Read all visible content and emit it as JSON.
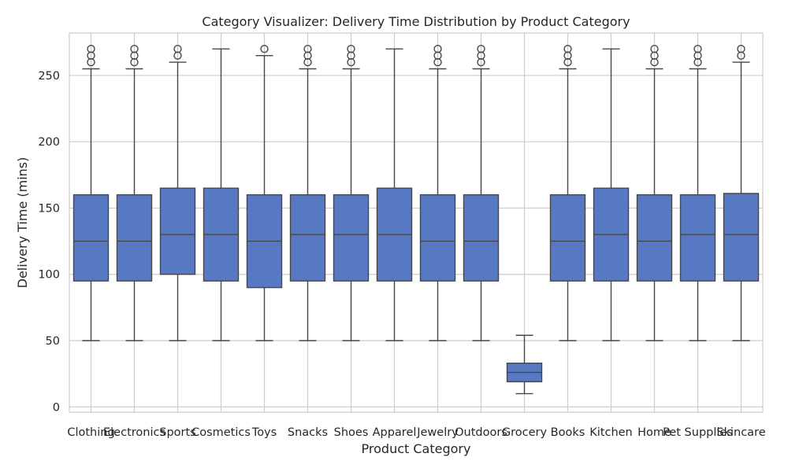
{
  "chart_data": {
    "type": "box",
    "title": "Category Visualizer: Delivery Time Distribution by Product Category",
    "xlabel": "Product Category",
    "ylabel": "Delivery Time (mins)",
    "ylim": [
      -4,
      282
    ],
    "yticks": [
      0,
      50,
      100,
      150,
      200,
      250
    ],
    "grid": true,
    "box_color": "#5778c3",
    "line_color": "#474747",
    "categories": [
      "Clothing",
      "Electronics",
      "Sports",
      "Cosmetics",
      "Toys",
      "Snacks",
      "Shoes",
      "Apparel",
      "Jewelry",
      "Outdoors",
      "Grocery",
      "Books",
      "Kitchen",
      "Home",
      "Pet Supplies",
      "Skincare"
    ],
    "boxes": [
      {
        "whisker_low": 50,
        "q1": 95,
        "median": 125,
        "q3": 160,
        "whisker_high": 255,
        "outliers": [
          260,
          265,
          270
        ]
      },
      {
        "whisker_low": 50,
        "q1": 95,
        "median": 125,
        "q3": 160,
        "whisker_high": 255,
        "outliers": [
          260,
          265,
          270
        ]
      },
      {
        "whisker_low": 50,
        "q1": 100,
        "median": 130,
        "q3": 165,
        "whisker_high": 260,
        "outliers": [
          265,
          270
        ]
      },
      {
        "whisker_low": 50,
        "q1": 95,
        "median": 130,
        "q3": 165,
        "whisker_high": 270,
        "outliers": []
      },
      {
        "whisker_low": 50,
        "q1": 90,
        "median": 125,
        "q3": 160,
        "whisker_high": 265,
        "outliers": [
          270
        ]
      },
      {
        "whisker_low": 50,
        "q1": 95,
        "median": 130,
        "q3": 160,
        "whisker_high": 255,
        "outliers": [
          260,
          265,
          270
        ]
      },
      {
        "whisker_low": 50,
        "q1": 95,
        "median": 130,
        "q3": 160,
        "whisker_high": 255,
        "outliers": [
          260,
          265,
          270
        ]
      },
      {
        "whisker_low": 50,
        "q1": 95,
        "median": 130,
        "q3": 165,
        "whisker_high": 270,
        "outliers": []
      },
      {
        "whisker_low": 50,
        "q1": 95,
        "median": 125,
        "q3": 160,
        "whisker_high": 255,
        "outliers": [
          260,
          265,
          270
        ]
      },
      {
        "whisker_low": 50,
        "q1": 95,
        "median": 125,
        "q3": 160,
        "whisker_high": 255,
        "outliers": [
          260,
          265,
          270
        ]
      },
      {
        "whisker_low": 10,
        "q1": 19,
        "median": 26,
        "q3": 33,
        "whisker_high": 54,
        "outliers": []
      },
      {
        "whisker_low": 50,
        "q1": 95,
        "median": 125,
        "q3": 160,
        "whisker_high": 255,
        "outliers": [
          260,
          265,
          270
        ]
      },
      {
        "whisker_low": 50,
        "q1": 95,
        "median": 130,
        "q3": 165,
        "whisker_high": 270,
        "outliers": []
      },
      {
        "whisker_low": 50,
        "q1": 95,
        "median": 125,
        "q3": 160,
        "whisker_high": 255,
        "outliers": [
          260,
          265,
          270
        ]
      },
      {
        "whisker_low": 50,
        "q1": 95,
        "median": 130,
        "q3": 160,
        "whisker_high": 255,
        "outliers": [
          260,
          265,
          270
        ]
      },
      {
        "whisker_low": 50,
        "q1": 95,
        "median": 130,
        "q3": 161,
        "whisker_high": 260,
        "outliers": [
          265,
          270
        ]
      }
    ]
  }
}
